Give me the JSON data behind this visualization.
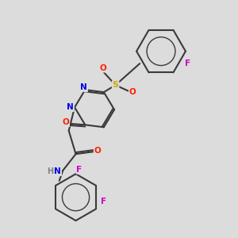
{
  "background_color": "#dcdcdc",
  "bond_color": "#3a3a3a",
  "atom_colors": {
    "N": "#0000ee",
    "O": "#ff2000",
    "S": "#ccaa00",
    "F": "#cc00cc",
    "H": "#808080",
    "C": "#3a3a3a"
  },
  "bg": "#dcdcdc"
}
